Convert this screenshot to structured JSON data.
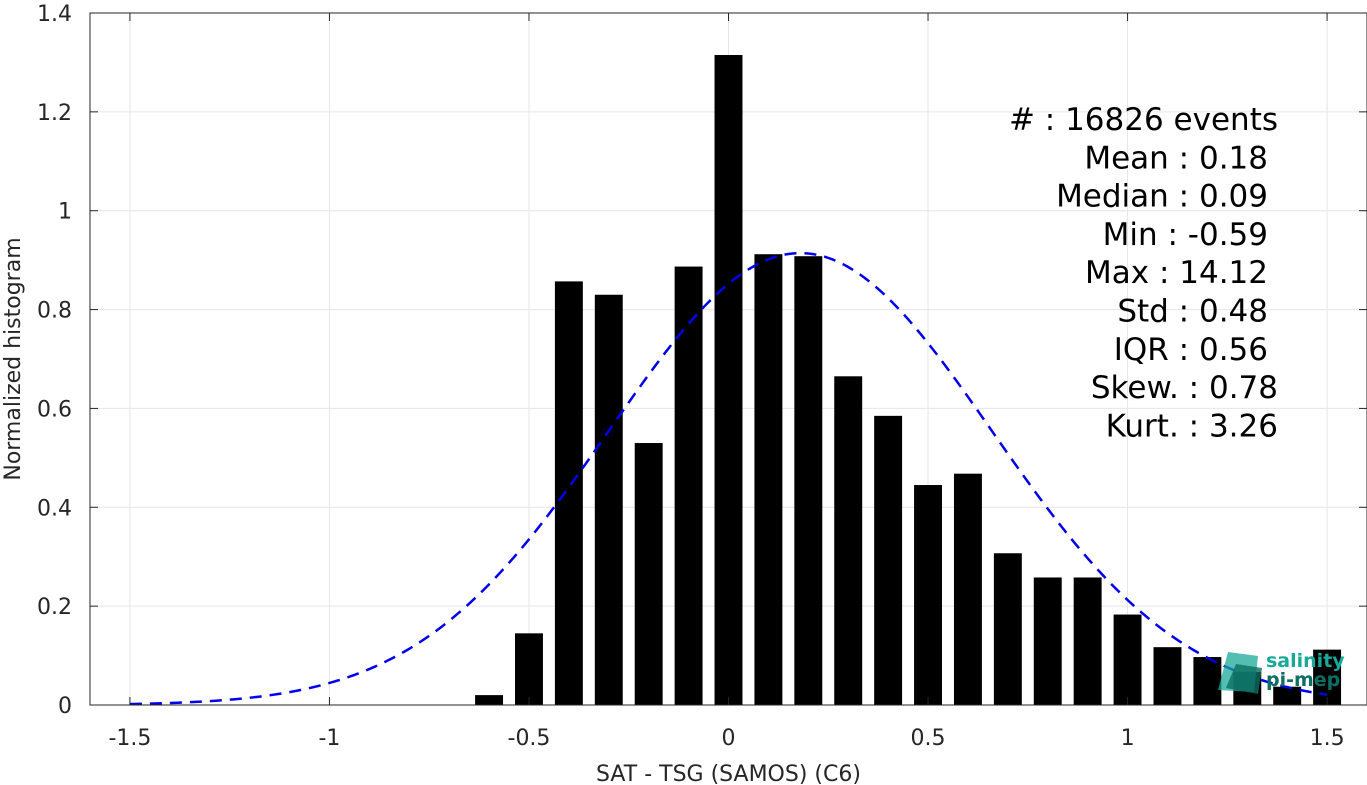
{
  "chart_data": {
    "type": "bar",
    "xlabel": "SAT - TSG (SAMOS) (C6)",
    "ylabel": "Normalized histogram",
    "xlim": [
      -1.6,
      1.6
    ],
    "ylim": [
      0,
      1.4
    ],
    "x_ticks": [
      {
        "value": -1.5,
        "label": "-1.5"
      },
      {
        "value": -1,
        "label": "-1"
      },
      {
        "value": -0.5,
        "label": "-0.5"
      },
      {
        "value": 0,
        "label": "0"
      },
      {
        "value": 0.5,
        "label": "0.5"
      },
      {
        "value": 1,
        "label": "1"
      },
      {
        "value": 1.5,
        "label": "1.5"
      }
    ],
    "y_ticks": [
      {
        "value": 0,
        "label": "0"
      },
      {
        "value": 0.2,
        "label": "0.2"
      },
      {
        "value": 0.4,
        "label": "0.4"
      },
      {
        "value": 0.6,
        "label": "0.6"
      },
      {
        "value": 0.8,
        "label": "0.8"
      },
      {
        "value": 1,
        "label": "1"
      },
      {
        "value": 1.2,
        "label": "1.2"
      },
      {
        "value": 1.4,
        "label": "1.4"
      }
    ],
    "grid": true,
    "bar_width": 0.07,
    "bars": {
      "x": [
        -0.6,
        -0.5,
        -0.4,
        -0.3,
        -0.2,
        -0.1,
        0.0,
        0.1,
        0.2,
        0.3,
        0.4,
        0.5,
        0.6,
        0.7,
        0.8,
        0.9,
        1.0,
        1.1,
        1.2,
        1.3,
        1.4,
        1.5
      ],
      "values": [
        0.02,
        0.145,
        0.857,
        0.83,
        0.53,
        0.887,
        1.315,
        0.912,
        0.908,
        0.665,
        0.585,
        0.445,
        0.468,
        0.307,
        0.258,
        0.258,
        0.183,
        0.117,
        0.097,
        0.067,
        0.037,
        0.112
      ],
      "color": "#000000"
    },
    "fit": {
      "type": "normal",
      "mean": 0.18,
      "std": 0.48,
      "color": "#0000ee",
      "style": "dashed"
    },
    "stats": [
      {
        "label": "#  : 16826 events"
      },
      {
        "label": "Mean : 0.18"
      },
      {
        "label": "Median : 0.09"
      },
      {
        "label": "Min : -0.59"
      },
      {
        "label": "Max : 14.12"
      },
      {
        "label": "Std : 0.48"
      },
      {
        "label": "IQR : 0.56"
      },
      {
        "label": "Skew. : 0.78"
      },
      {
        "label": "Kurt. : 3.26"
      }
    ]
  },
  "logo": {
    "line1": "salinity",
    "line2": "pi-mep",
    "color": "#1aa898"
  }
}
